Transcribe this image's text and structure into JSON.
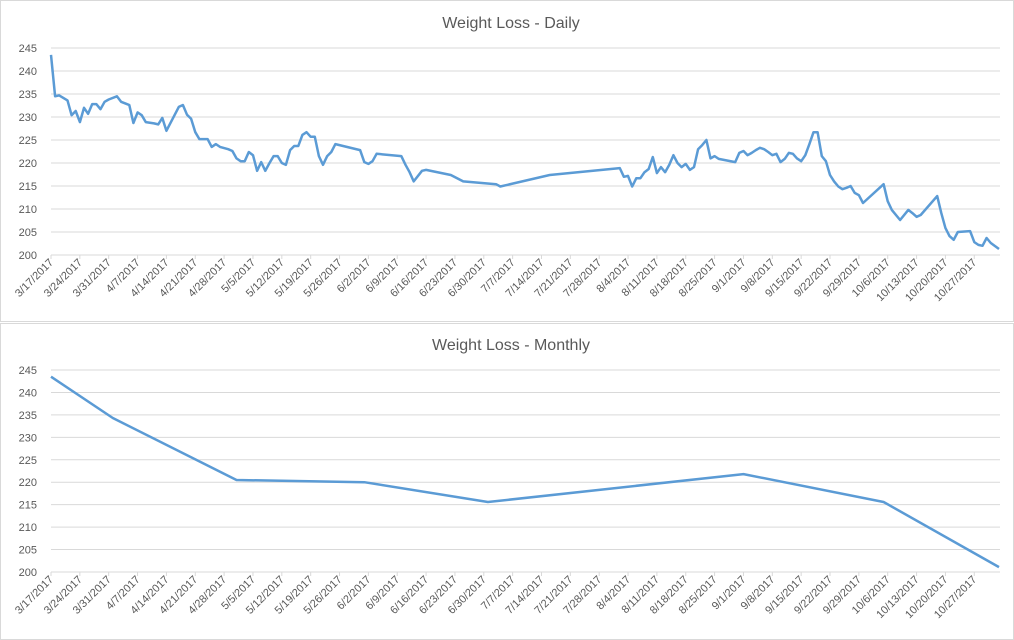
{
  "chart_data": [
    {
      "type": "line",
      "title": "Weight Loss - Daily",
      "x": [
        "3/17/2017",
        "3/18/2017",
        "3/19/2017",
        "3/21/2017",
        "3/22/2017",
        "3/23/2017",
        "3/24/2017",
        "3/25/2017",
        "3/26/2017",
        "3/27/2017",
        "3/28/2017",
        "3/29/2017",
        "3/30/2017",
        "3/31/2017",
        "4/2/2017",
        "4/3/2017",
        "4/5/2017",
        "4/6/2017",
        "4/7/2017",
        "4/8/2017",
        "4/9/2017",
        "4/11/2017",
        "4/12/2017",
        "4/13/2017",
        "4/14/2017",
        "4/17/2017",
        "4/18/2017",
        "4/19/2017",
        "4/20/2017",
        "4/21/2017",
        "4/22/2017",
        "4/24/2017",
        "4/25/2017",
        "4/26/2017",
        "4/27/2017",
        "4/29/2017",
        "4/30/2017",
        "5/1/2017",
        "5/2/2017",
        "5/3/2017",
        "5/4/2017",
        "5/5/2017",
        "5/6/2017",
        "5/7/2017",
        "5/8/2017",
        "5/9/2017",
        "5/10/2017",
        "5/11/2017",
        "5/12/2017",
        "5/13/2017",
        "5/14/2017",
        "5/15/2017",
        "5/16/2017",
        "5/17/2017",
        "5/18/2017",
        "5/19/2017",
        "5/20/2017",
        "5/21/2017",
        "5/22/2017",
        "5/23/2017",
        "5/24/2017",
        "5/25/2017",
        "5/31/2017",
        "6/1/2017",
        "6/2/2017",
        "6/3/2017",
        "6/4/2017",
        "6/10/2017",
        "6/11/2017",
        "6/12/2017",
        "6/13/2017",
        "6/15/2017",
        "6/16/2017",
        "6/22/2017",
        "6/25/2017",
        "7/3/2017",
        "7/4/2017",
        "7/16/2017",
        "8/2/2017",
        "8/3/2017",
        "8/4/2017",
        "8/5/2017",
        "8/6/2017",
        "8/7/2017",
        "8/8/2017",
        "8/9/2017",
        "8/10/2017",
        "8/11/2017",
        "8/12/2017",
        "8/13/2017",
        "8/14/2017",
        "8/15/2017",
        "8/16/2017",
        "8/17/2017",
        "8/18/2017",
        "8/19/2017",
        "8/20/2017",
        "8/21/2017",
        "8/22/2017",
        "8/23/2017",
        "8/24/2017",
        "8/25/2017",
        "8/26/2017",
        "8/30/2017",
        "8/31/2017",
        "9/1/2017",
        "9/2/2017",
        "9/3/2017",
        "9/4/2017",
        "9/5/2017",
        "9/6/2017",
        "9/7/2017",
        "9/8/2017",
        "9/9/2017",
        "9/10/2017",
        "9/11/2017",
        "9/12/2017",
        "9/13/2017",
        "9/14/2017",
        "9/15/2017",
        "9/16/2017",
        "9/17/2017",
        "9/18/2017",
        "9/19/2017",
        "9/20/2017",
        "9/21/2017",
        "9/22/2017",
        "9/23/2017",
        "9/24/2017",
        "9/25/2017",
        "9/26/2017",
        "9/27/2017",
        "9/28/2017",
        "9/29/2017",
        "9/30/2017",
        "10/5/2017",
        "10/6/2017",
        "10/7/2017",
        "10/9/2017",
        "10/11/2017",
        "10/12/2017",
        "10/13/2017",
        "10/14/2017",
        "10/18/2017",
        "10/19/2017",
        "10/20/2017",
        "10/21/2017",
        "10/22/2017",
        "10/23/2017",
        "10/26/2017",
        "10/27/2017",
        "10/28/2017",
        "10/29/2017",
        "10/30/2017",
        "10/31/2017",
        "11/2/2017"
      ],
      "series": [
        {
          "color": "#5b9bd5",
          "values": [
            243.5,
            234.5,
            234.7,
            233.6,
            230.4,
            231.3,
            228.9,
            232,
            230.7,
            232.8,
            232.8,
            231.7,
            233.3,
            233.8,
            234.5,
            233.3,
            232.6,
            228.7,
            231,
            230.4,
            228.9,
            228.6,
            228.4,
            229.8,
            227,
            232.2,
            232.6,
            230.5,
            229.6,
            226.7,
            225.2,
            225.2,
            223.5,
            224.1,
            223.5,
            223,
            222.6,
            221,
            220.4,
            220.4,
            222.4,
            221.7,
            218.3,
            220.2,
            218.3,
            220,
            221.5,
            221.5,
            220,
            219.6,
            222.8,
            223.7,
            223.7,
            226.1,
            226.7,
            225.7,
            225.7,
            221.5,
            219.6,
            221.5,
            222.4,
            224.1,
            222.8,
            220.2,
            219.8,
            220.4,
            222,
            221.5,
            219.6,
            218,
            216,
            218.3,
            218.5,
            217.4,
            216,
            215.4,
            214.9,
            217.4,
            218.9,
            217,
            217.2,
            214.9,
            216.7,
            216.7,
            218,
            218.7,
            221.3,
            217.8,
            219.1,
            218,
            219.6,
            221.7,
            220,
            219.1,
            219.8,
            218.5,
            219.1,
            223,
            223.9,
            225,
            221,
            221.5,
            220.9,
            220.2,
            222.2,
            222.6,
            221.7,
            222.2,
            222.8,
            223.3,
            223,
            222.4,
            221.7,
            222,
            220.2,
            220.9,
            222.2,
            222,
            221,
            220.4,
            221.7,
            224.1,
            226.7,
            226.7,
            221.5,
            220.4,
            217.4,
            216,
            214.9,
            214.3,
            214.6,
            215,
            213.5,
            213,
            211.3,
            215.4,
            211.7,
            209.8,
            207.6,
            209.8,
            209.1,
            208.3,
            208.7,
            212.8,
            209.1,
            205.9,
            204.1,
            203.3,
            205,
            205.2,
            202.8,
            202.2,
            202,
            203.7,
            202.6,
            201.3
          ]
        }
      ],
      "xlim": [
        "3/17/2017",
        "11/2/2017"
      ],
      "xticks": [
        "3/17/2017",
        "3/24/2017",
        "3/31/2017",
        "4/7/2017",
        "4/14/2017",
        "4/21/2017",
        "4/28/2017",
        "5/5/2017",
        "5/12/2017",
        "5/19/2017",
        "5/26/2017",
        "6/2/2017",
        "6/9/2017",
        "6/16/2017",
        "6/23/2017",
        "6/30/2017",
        "7/7/2017",
        "7/14/2017",
        "7/21/2017",
        "7/28/2017",
        "8/4/2017",
        "8/11/2017",
        "8/18/2017",
        "8/25/2017",
        "9/1/2017",
        "9/8/2017",
        "9/15/2017",
        "9/22/2017",
        "9/29/2017",
        "10/6/2017",
        "10/13/2017",
        "10/20/2017",
        "10/27/2017"
      ],
      "ylim": [
        200,
        245
      ],
      "yticks": [
        200,
        205,
        210,
        215,
        220,
        225,
        230,
        235,
        240,
        245
      ],
      "grid": true
    },
    {
      "type": "line",
      "title": "Weight Loss - Monthly",
      "x": [
        "3/17/2017",
        "4/1/2017",
        "5/1/2017",
        "6/1/2017",
        "7/1/2017",
        "9/1/2017",
        "10/5/2017",
        "11/2/2017"
      ],
      "series": [
        {
          "color": "#5b9bd5",
          "values": [
            243.5,
            234.3,
            220.5,
            220,
            215.6,
            221.8,
            215.6,
            201.1
          ]
        }
      ],
      "xlim": [
        "3/17/2017",
        "11/2/2017"
      ],
      "xticks": [
        "3/17/2017",
        "3/24/2017",
        "3/31/2017",
        "4/7/2017",
        "4/14/2017",
        "4/21/2017",
        "4/28/2017",
        "5/5/2017",
        "5/12/2017",
        "5/19/2017",
        "5/26/2017",
        "6/2/2017",
        "6/9/2017",
        "6/16/2017",
        "6/23/2017",
        "6/30/2017",
        "7/7/2017",
        "7/14/2017",
        "7/21/2017",
        "7/28/2017",
        "8/4/2017",
        "8/11/2017",
        "8/18/2017",
        "8/25/2017",
        "9/1/2017",
        "9/8/2017",
        "9/15/2017",
        "9/22/2017",
        "9/29/2017",
        "10/6/2017",
        "10/13/2017",
        "10/20/2017",
        "10/27/2017"
      ],
      "ylim": [
        200,
        245
      ],
      "yticks": [
        200,
        205,
        210,
        215,
        220,
        225,
        230,
        235,
        240,
        245
      ],
      "grid": true
    }
  ]
}
